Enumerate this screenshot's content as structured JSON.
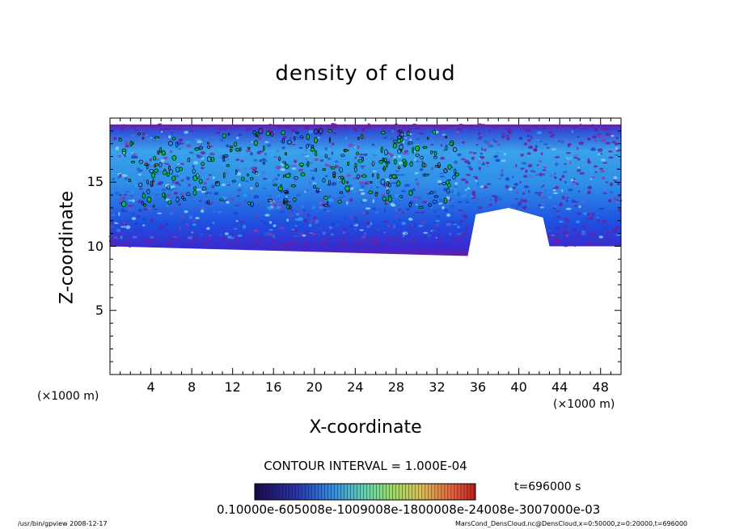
{
  "chart_data": {
    "type": "heatmap",
    "title": "density of cloud",
    "xlabel": "X-coordinate",
    "ylabel": "Z-coordinate",
    "x_unit": "(×1000 m)",
    "y_unit": "(×1000 m)",
    "xlim": [
      0,
      50
    ],
    "ylim": [
      0,
      20
    ],
    "x_ticks": [
      4,
      8,
      12,
      16,
      20,
      24,
      28,
      32,
      36,
      40,
      44,
      48
    ],
    "y_ticks": [
      5,
      10,
      15
    ],
    "contour_interval": "CONTOUR INTERVAL = 1.000E-04",
    "time_label": "t=696000 s",
    "colorbar_labels": "0.10000e-605008e-1009008e-1800008e-24008e-3007000e-03",
    "cloud_region": {
      "x_range": [
        0,
        50
      ],
      "z_range": [
        10,
        19.5
      ],
      "gap_x_range": [
        35,
        43
      ],
      "gap_z_min": 13
    },
    "colors": {
      "low": "#6a1fa0",
      "mid_low": "#2448d8",
      "mid": "#2e8fe8",
      "high": "#8ad8f0",
      "contour": "#00c040"
    }
  },
  "footer": {
    "left": "/usr/bin/gpview  2008-12-17",
    "right": "MarsCond_DensCloud.nc@DensCloud,x=0:50000,z=0:20000,t=696000"
  }
}
